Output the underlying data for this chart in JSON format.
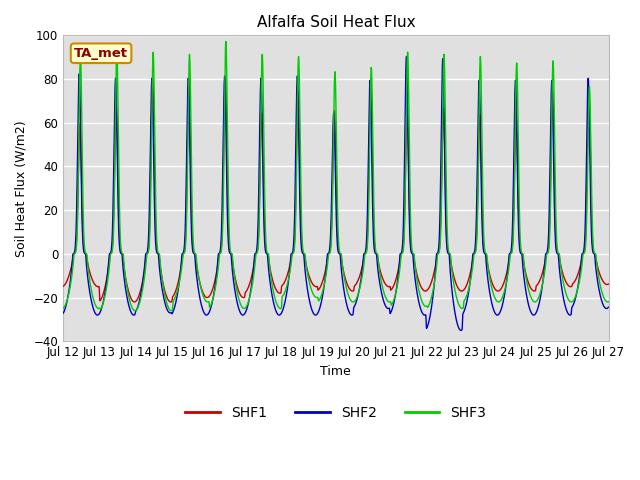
{
  "title": "Alfalfa Soil Heat Flux",
  "ylabel": "Soil Heat Flux (W/m2)",
  "xlabel": "Time",
  "annotation": "TA_met",
  "ylim": [
    -40,
    100
  ],
  "yticks": [
    -40,
    -20,
    0,
    20,
    40,
    60,
    80,
    100
  ],
  "xtick_labels": [
    "Jul 12",
    "Jul 13",
    "Jul 14",
    "Jul 15",
    "Jul 16",
    "Jul 17",
    "Jul 18",
    "Jul 19",
    "Jul 20",
    "Jul 21",
    "Jul 22",
    "Jul 23",
    "Jul 24",
    "Jul 25",
    "Jul 26",
    "Jul 27"
  ],
  "colors": {
    "SHF1": "#cc0000",
    "SHF2": "#0000cc",
    "SHF3": "#00cc00"
  },
  "background_color": "#ffffff",
  "plot_bg_color": "#e0e0e0",
  "grid_color": "#ffffff",
  "n_days": 15,
  "pts_per_day": 288,
  "shf1_peaks": [
    60,
    68,
    81,
    80,
    81,
    65,
    75,
    66,
    76,
    65,
    67,
    64,
    64,
    75,
    76
  ],
  "shf2_peaks": [
    83,
    81,
    81,
    81,
    82,
    81,
    82,
    65,
    80,
    91,
    90,
    80,
    80,
    80,
    81
  ],
  "shf3_peaks": [
    91,
    93,
    93,
    92,
    98,
    92,
    91,
    84,
    86,
    93,
    92,
    91,
    88,
    89,
    77
  ],
  "shf1_troughs": [
    -15,
    -22,
    -22,
    -20,
    -20,
    -18,
    -15,
    -17,
    -15,
    -17,
    -17,
    -17,
    -17,
    -15,
    -14
  ],
  "shf2_troughs": [
    -28,
    -28,
    -27,
    -28,
    -28,
    -28,
    -28,
    -28,
    -25,
    -28,
    -35,
    -28,
    -28,
    -28,
    -25
  ],
  "shf3_troughs": [
    -25,
    -26,
    -26,
    -22,
    -25,
    -25,
    -20,
    -22,
    -22,
    -24,
    -25,
    -22,
    -22,
    -22,
    -22
  ]
}
